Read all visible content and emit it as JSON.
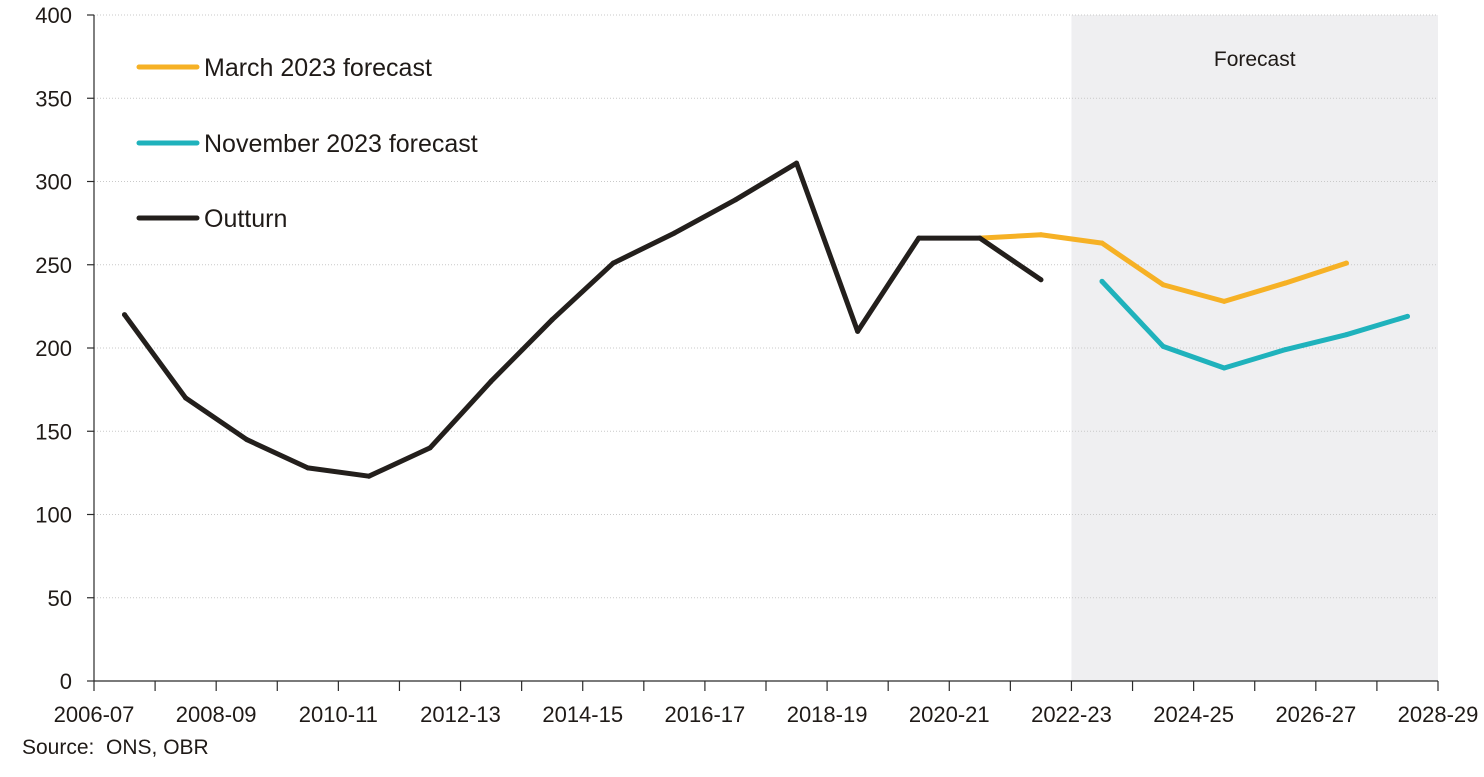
{
  "chart_data": {
    "type": "line",
    "title": "",
    "xlabel": "",
    "ylabel": "",
    "ylim": [
      0,
      400
    ],
    "yticks": [
      0,
      50,
      100,
      150,
      200,
      250,
      300,
      350,
      400
    ],
    "x_categories": [
      "2006-07",
      "2007-08",
      "2008-09",
      "2009-10",
      "2010-11",
      "2011-12",
      "2012-13",
      "2013-14",
      "2014-15",
      "2015-16",
      "2016-17",
      "2017-18",
      "2018-19",
      "2019-20",
      "2020-21",
      "2021-22",
      "2022-23",
      "2023-24",
      "2024-25",
      "2025-26",
      "2026-27",
      "2027-28",
      "2028-29"
    ],
    "x_tick_labels": [
      "2006-07",
      "2008-09",
      "2010-11",
      "2012-13",
      "2014-15",
      "2016-17",
      "2018-19",
      "2020-21",
      "2022-23",
      "2024-25",
      "2026-27",
      "2028-29"
    ],
    "forecast_region": {
      "label": "Forecast",
      "start": "2022-23",
      "end": "2028-29",
      "color": "#efeff1"
    },
    "grid": "horizontal",
    "legend_position": "top-left",
    "series": [
      {
        "name": "March 2023 forecast",
        "color": "#f6b125",
        "points": [
          {
            "x": "2020-21",
            "y": 266
          },
          {
            "x": "2021-22",
            "y": 268
          },
          {
            "x": "2022-23",
            "y": 263
          },
          {
            "x": "2023-24",
            "y": 238
          },
          {
            "x": "2024-25",
            "y": 228
          },
          {
            "x": "2025-26",
            "y": 239
          },
          {
            "x": "2026-27",
            "y": 251
          }
        ]
      },
      {
        "name": "November 2023 forecast",
        "color": "#1fb2bc",
        "points": [
          {
            "x": "2022-23",
            "y": 240
          },
          {
            "x": "2023-24",
            "y": 201
          },
          {
            "x": "2024-25",
            "y": 188
          },
          {
            "x": "2025-26",
            "y": 199
          },
          {
            "x": "2026-27",
            "y": 208
          },
          {
            "x": "2027-28",
            "y": 219
          }
        ]
      },
      {
        "name": "Outturn",
        "color": "#231f1c",
        "points": [
          {
            "x": "2006-07",
            "y": 220
          },
          {
            "x": "2007-08",
            "y": 170
          },
          {
            "x": "2008-09",
            "y": 145
          },
          {
            "x": "2009-10",
            "y": 128
          },
          {
            "x": "2010-11",
            "y": 123
          },
          {
            "x": "2011-12",
            "y": 140
          },
          {
            "x": "2012-13",
            "y": 180
          },
          {
            "x": "2013-14",
            "y": 217
          },
          {
            "x": "2014-15",
            "y": 251
          },
          {
            "x": "2015-16",
            "y": 269
          },
          {
            "x": "2016-17",
            "y": 289
          },
          {
            "x": "2017-18",
            "y": 311
          },
          {
            "x": "2018-19",
            "y": 210
          },
          {
            "x": "2019-20",
            "y": 266
          },
          {
            "x": "2020-21",
            "y": 266
          },
          {
            "x": "2021-22",
            "y": 241
          }
        ]
      }
    ],
    "legend": [
      {
        "label": "March 2023 forecast",
        "color": "#f6b125"
      },
      {
        "label": "November 2023 forecast",
        "color": "#1fb2bc"
      },
      {
        "label": "Outturn",
        "color": "#231f1c"
      }
    ],
    "source": "Source:  ONS, OBR"
  }
}
